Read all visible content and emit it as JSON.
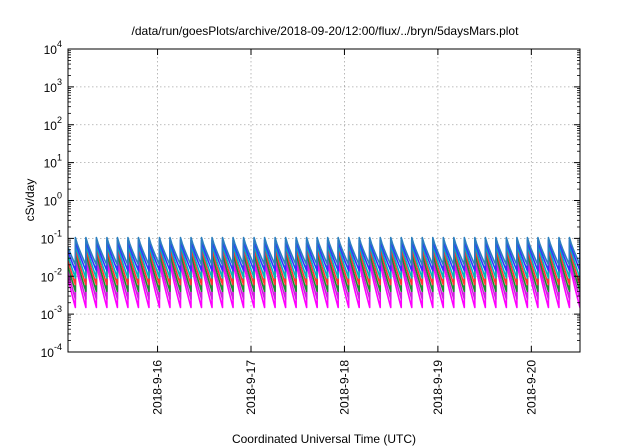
{
  "chart_data": {
    "type": "line",
    "title": "/data/run/goesPlots/archive/2018-09-20/12:00/flux/../bryn/5daysMars.plot",
    "xlabel": "Coordinated Universal Time (UTC)",
    "ylabel": "cSv/day",
    "yscale": "log",
    "ylim": [
      0.0001,
      10000
    ],
    "xlim": [
      "2018-09-15T01:00",
      "2018-09-20T12:30"
    ],
    "y_ticks": [
      {
        "base": "10",
        "exp": "-4"
      },
      {
        "base": "10",
        "exp": "-3"
      },
      {
        "base": "10",
        "exp": "-2"
      },
      {
        "base": "10",
        "exp": "-1"
      },
      {
        "base": "10",
        "exp": "0"
      },
      {
        "base": "10",
        "exp": "1"
      },
      {
        "base": "10",
        "exp": "2"
      },
      {
        "base": "10",
        "exp": "3"
      },
      {
        "base": "10",
        "exp": "4"
      }
    ],
    "x_ticks": [
      "2018-9-16",
      "2018-9-17",
      "2018-9-18",
      "2018-9-19",
      "2018-9-20"
    ],
    "grid": true,
    "legend": "none",
    "cycle_period_hours": 2.7,
    "series": [
      {
        "color": "#ff00ff",
        "values": [
          0.025,
          0.0015
        ]
      },
      {
        "color": "#cc22dd",
        "values": [
          0.035,
          0.0025
        ]
      },
      {
        "color": "#1b8e2f",
        "values": [
          0.045,
          0.004
        ]
      },
      {
        "color": "#ff3333",
        "values": [
          0.06,
          0.006
        ]
      },
      {
        "color": "#00b8b8",
        "values": [
          0.075,
          0.009
        ]
      },
      {
        "color": "#3333ff",
        "values": [
          0.09,
          0.014
        ]
      },
      {
        "color": "#2b7fbf",
        "values": [
          0.105,
          0.02
        ]
      }
    ]
  }
}
